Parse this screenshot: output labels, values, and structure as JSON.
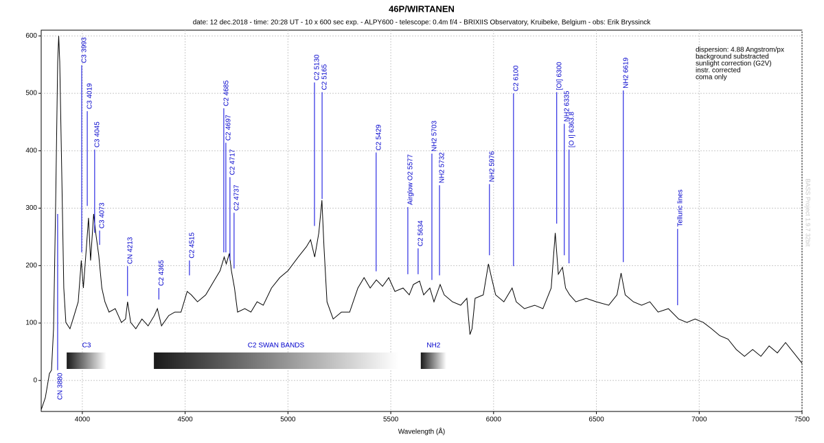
{
  "chart_data": {
    "type": "line",
    "title": "46P/WIRTANEN",
    "subtitle": "date: 12 dec.2018 - time: 20:28 UT - 10 x 600 sec exp. - ALPY600 - telescope: 0.4m f/4 - BRIXIIS Observatory, Kruibeke, Belgium - obs: Erik Bryssinck",
    "x_label": "Wavelength (Å)",
    "watermark": "BASS Project 1.9.7 32bit",
    "notes": [
      "dispersion: 4.88 Angstrom/px",
      "background substracted",
      "sunlight correction (G2V)",
      "instr. corrected",
      "coma only"
    ],
    "color": "#000000",
    "annotation_color": "#0000dd",
    "grid": true,
    "xlim": [
      3800,
      7500
    ],
    "ylim": [
      -54,
      610
    ],
    "xticks": [
      4000,
      4500,
      5000,
      5500,
      6000,
      6500,
      7000,
      7500
    ],
    "yticks": [
      0,
      100,
      200,
      300,
      400,
      500,
      600
    ],
    "x": [
      3800,
      3820,
      3840,
      3850,
      3860,
      3870,
      3880,
      3885,
      3890,
      3900,
      3910,
      3920,
      3940,
      3960,
      3980,
      3995,
      4005,
      4020,
      4030,
      4040,
      4055,
      4065,
      4080,
      4095,
      4110,
      4130,
      4160,
      4190,
      4210,
      4220,
      4235,
      4260,
      4290,
      4320,
      4350,
      4365,
      4385,
      4420,
      4450,
      4480,
      4510,
      4530,
      4560,
      4600,
      4640,
      4670,
      4690,
      4700,
      4715,
      4725,
      4740,
      4755,
      4790,
      4820,
      4850,
      4880,
      4920,
      4960,
      5000,
      5050,
      5090,
      5110,
      5130,
      5150,
      5165,
      5175,
      5190,
      5220,
      5260,
      5300,
      5340,
      5370,
      5400,
      5430,
      5460,
      5490,
      5520,
      5560,
      5590,
      5610,
      5640,
      5660,
      5690,
      5710,
      5740,
      5760,
      5800,
      5840,
      5870,
      5885,
      5895,
      5910,
      5950,
      5975,
      5990,
      6010,
      6050,
      6090,
      6110,
      6150,
      6200,
      6240,
      6280,
      6300,
      6315,
      6335,
      6350,
      6370,
      6400,
      6450,
      6500,
      6560,
      6600,
      6620,
      6640,
      6680,
      6720,
      6760,
      6800,
      6850,
      6900,
      6940,
      6980,
      7020,
      7060,
      7100,
      7140,
      7180,
      7220,
      7260,
      7300,
      7340,
      7380,
      7420,
      7460,
      7500
    ],
    "values": [
      -51,
      -30,
      12,
      18,
      90,
      304,
      555,
      600,
      555,
      364,
      161,
      101,
      90,
      113,
      137,
      209,
      161,
      233,
      283,
      209,
      290,
      257,
      218,
      161,
      137,
      119,
      125,
      101,
      107,
      137,
      101,
      90,
      107,
      95,
      113,
      125,
      95,
      113,
      119,
      119,
      155,
      149,
      137,
      149,
      173,
      191,
      215,
      203,
      221,
      191,
      161,
      119,
      125,
      119,
      137,
      131,
      161,
      179,
      191,
      215,
      233,
      245,
      215,
      257,
      314,
      233,
      137,
      107,
      119,
      119,
      161,
      179,
      161,
      175,
      164,
      179,
      155,
      161,
      149,
      167,
      173,
      149,
      161,
      137,
      167,
      149,
      137,
      131,
      143,
      80,
      90,
      143,
      149,
      203,
      179,
      149,
      137,
      161,
      137,
      125,
      131,
      125,
      161,
      257,
      185,
      197,
      161,
      149,
      137,
      143,
      137,
      131,
      149,
      187,
      149,
      137,
      131,
      137,
      119,
      125,
      107,
      101,
      107,
      101,
      90,
      78,
      72,
      54,
      42,
      54,
      42,
      60,
      48,
      66,
      48,
      30
    ],
    "lines": [
      {
        "label": "CN 3880",
        "x": 3880,
        "top": 290,
        "bottom": 18
      },
      {
        "label": "C3 3993",
        "x": 3997,
        "top": 549,
        "bottom": 223
      },
      {
        "label": "C3 4019",
        "x": 4024,
        "top": 469,
        "bottom": 304
      },
      {
        "label": "C3 4045",
        "x": 4060,
        "top": 402,
        "bottom": 257
      },
      {
        "label": "C3 4073",
        "x": 4084,
        "top": 261,
        "bottom": 236
      },
      {
        "label": "CN 4213",
        "x": 4220,
        "top": 199,
        "bottom": 147
      },
      {
        "label": "C2 4365",
        "x": 4372,
        "top": 161,
        "bottom": 141
      },
      {
        "label": "C2 4515",
        "x": 4521,
        "top": 209,
        "bottom": 183
      },
      {
        "label": "C2 4685",
        "x": 4688,
        "top": 474,
        "bottom": 223
      },
      {
        "label": "C2 4697",
        "x": 4698,
        "top": 414,
        "bottom": 223
      },
      {
        "label": "C2 4717",
        "x": 4718,
        "top": 354,
        "bottom": 209
      },
      {
        "label": "C2 4737",
        "x": 4738,
        "top": 292,
        "bottom": 195
      },
      {
        "label": "C2 5130",
        "x": 5129,
        "top": 519,
        "bottom": 269
      },
      {
        "label": "C2 5165",
        "x": 5166,
        "top": 502,
        "bottom": 316
      },
      {
        "label": "C2 5429",
        "x": 5429,
        "top": 397,
        "bottom": 190
      },
      {
        "label": "Airglow O2 5577",
        "x": 5583,
        "top": 302,
        "bottom": 185
      },
      {
        "label": "C2 5634",
        "x": 5633,
        "top": 230,
        "bottom": 185
      },
      {
        "label": "NH2 5703",
        "x": 5700,
        "top": 395,
        "bottom": 175
      },
      {
        "label": "NH2 5732",
        "x": 5737,
        "top": 340,
        "bottom": 183
      },
      {
        "label": "NH2 5976",
        "x": 5980,
        "top": 342,
        "bottom": 218
      },
      {
        "label": "C2 6100",
        "x": 6097,
        "top": 500,
        "bottom": 199
      },
      {
        "label": "[OI] 6300",
        "x": 6307,
        "top": 502,
        "bottom": 273
      },
      {
        "label": "NH2 6335",
        "x": 6344,
        "top": 447,
        "bottom": 218
      },
      {
        "label": "[O I] 6363.8",
        "x": 6367,
        "top": 402,
        "bottom": 204
      },
      {
        "label": "NH2 6619",
        "x": 6631,
        "top": 505,
        "bottom": 206
      },
      {
        "label": "Telluric lines",
        "x": 6895,
        "top": 264,
        "bottom": 131
      }
    ],
    "bands": [
      {
        "label": "C3",
        "start": 3924,
        "end": 4117
      },
      {
        "label": "C2 SWAN BANDS",
        "start": 4348,
        "end": 5536
      },
      {
        "label": "NH2",
        "start": 5646,
        "end": 5770
      }
    ]
  }
}
